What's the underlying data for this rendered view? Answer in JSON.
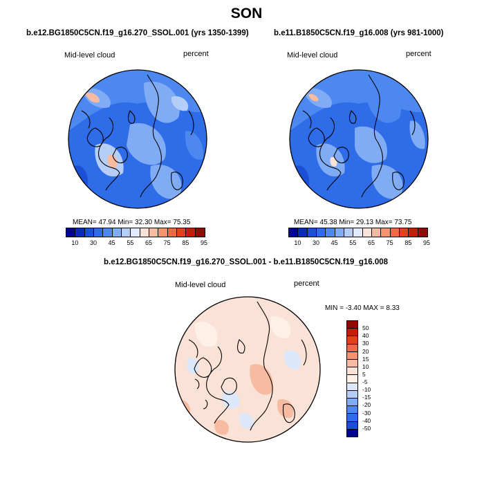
{
  "title": "SON",
  "panels": [
    {
      "case": "b.e12.BG1850C5CN.f19_g16.270_SSOL.001 (yrs 1350-1399)",
      "field": "Mid-level cloud",
      "units": "percent",
      "stats": "MEAN=  47.94  Min=  32.30  Max=  75.35",
      "colorbar_ticks": [
        "10",
        "30",
        "45",
        "55",
        "65",
        "75",
        "85",
        "95"
      ]
    },
    {
      "case": "b.e11.B1850C5CN.f19_g16.008 (yrs 981-1000)",
      "field": "Mid-level cloud",
      "units": "percent",
      "stats": "MEAN=  45.38  Min=  29.13  Max=  73.75",
      "colorbar_ticks": [
        "10",
        "30",
        "45",
        "55",
        "65",
        "75",
        "85",
        "95"
      ]
    }
  ],
  "diff": {
    "case": "b.e12.BG1850C5CN.f19_g16.270_SSOL.001 - b.e11.B1850C5CN.f19_g16.008",
    "field": "Mid-level cloud",
    "units": "percent",
    "stats": "MIN =  -3.40 MAX =   8.33",
    "colorbar_ticks": [
      "50",
      "40",
      "30",
      "20",
      "15",
      "10",
      "5",
      "-5",
      "-10",
      "-15",
      "-20",
      "-30",
      "-40",
      "-50"
    ]
  },
  "colors": {
    "abs_scale": [
      "#00058f",
      "#0a2ab8",
      "#1a4fd6",
      "#2f6ce8",
      "#4c88f0",
      "#80acf5",
      "#b5cef8",
      "#e2ebfb",
      "#fbe2d6",
      "#f7bba2",
      "#f5936e",
      "#ee6a45",
      "#e0421e",
      "#c21f0b",
      "#8e0c04"
    ],
    "diff_scale": [
      "#8e0c04",
      "#c21f0b",
      "#e0421e",
      "#ee6a45",
      "#f5936e",
      "#f7bba2",
      "#fbe2d6",
      "#fdf0e6",
      "#dce8fa",
      "#b5cef8",
      "#80acf5",
      "#4c88f0",
      "#2f6ce8",
      "#1a4fd6",
      "#00058f"
    ]
  }
}
